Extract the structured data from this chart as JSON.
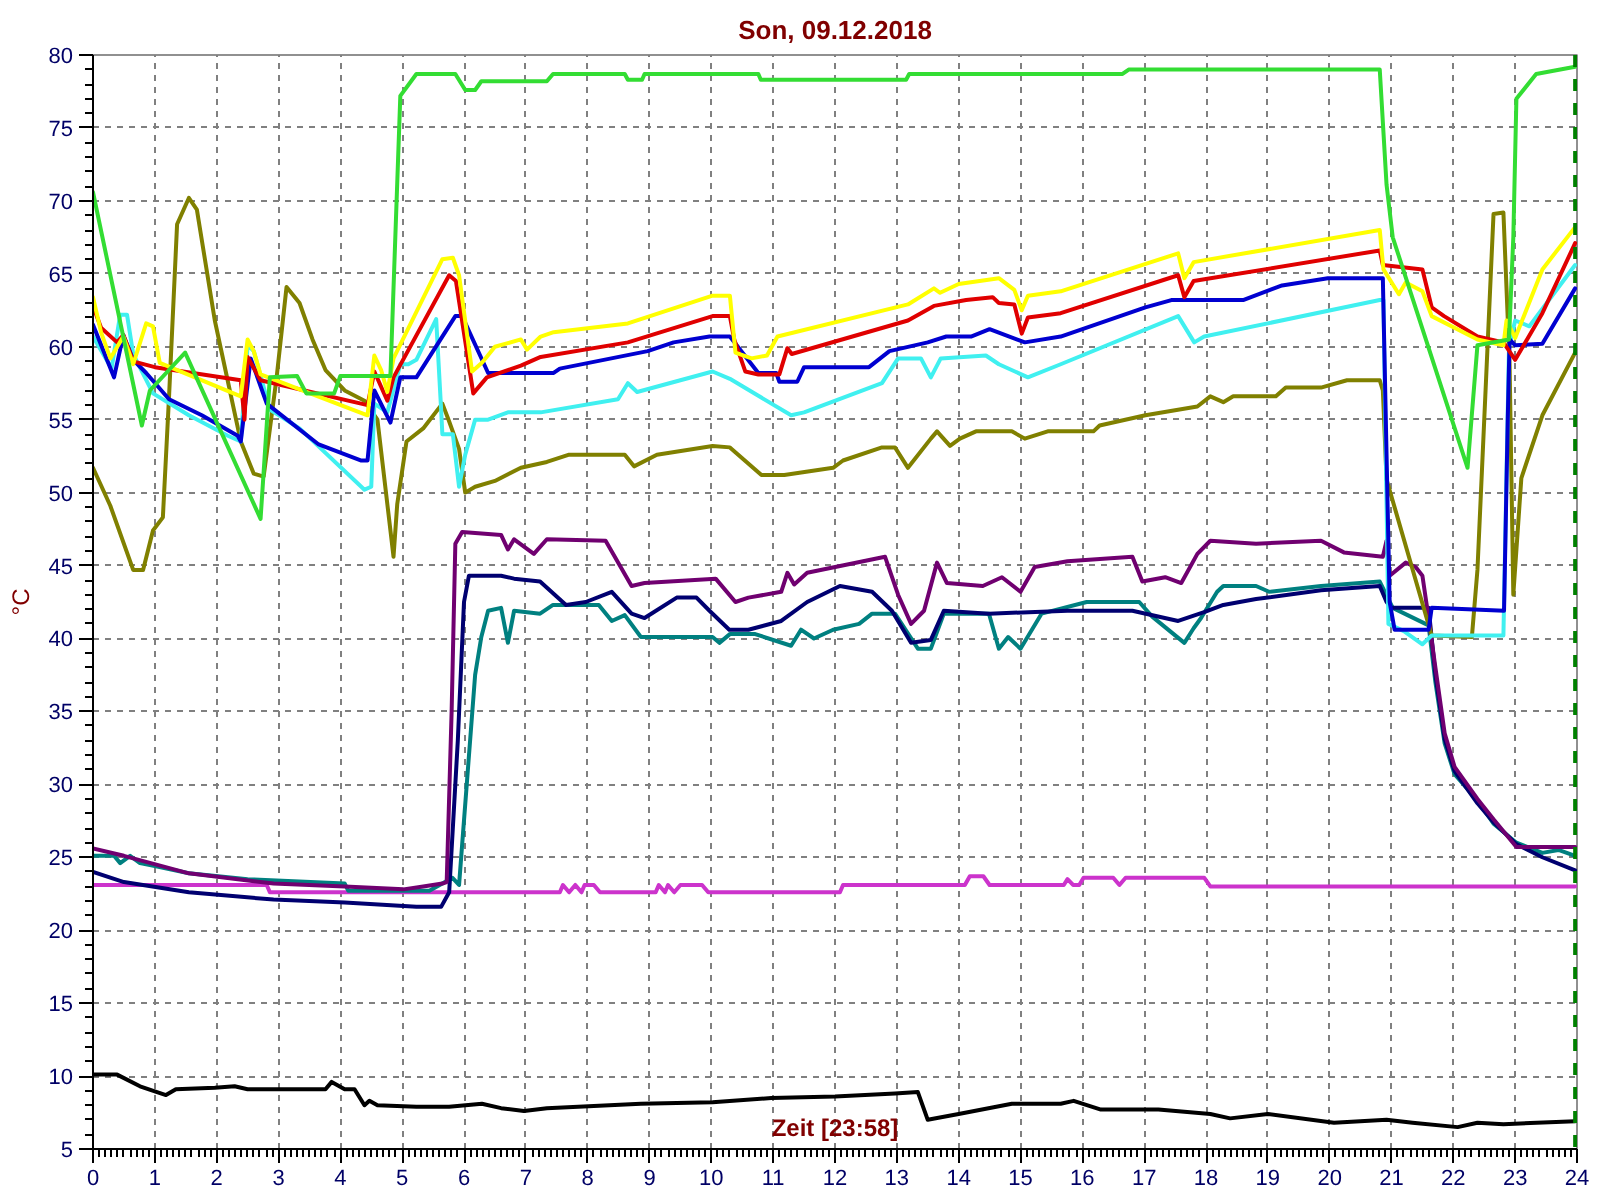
{
  "chart_data": {
    "type": "line",
    "title": "Son, 09.12.2018",
    "xlabel": "Zeit [23:58]",
    "ylabel": "°C",
    "xlim": [
      0,
      24
    ],
    "ylim": [
      5,
      80
    ],
    "xticks": [
      0,
      1,
      2,
      3,
      4,
      5,
      6,
      7,
      8,
      9,
      10,
      11,
      12,
      13,
      14,
      15,
      16,
      17,
      18,
      19,
      20,
      21,
      22,
      23,
      24
    ],
    "yticks": [
      5,
      10,
      15,
      20,
      25,
      30,
      35,
      40,
      45,
      50,
      55,
      60,
      65,
      70,
      75,
      80
    ],
    "grid": true,
    "ref_lines": [
      {
        "axis": "x",
        "value": 23.97,
        "color": "#008000",
        "line_style": "dashed"
      }
    ],
    "series": [
      {
        "color": "#000000",
        "x": [
          0,
          0.39,
          0.76,
          1.18,
          1.34,
          1.97,
          2.29,
          2.5,
          3.76,
          3.86,
          4.07,
          4.23,
          4.39,
          4.47,
          4.6,
          5.23,
          5.76,
          6.29,
          6.6,
          6.97,
          7.34,
          8.86,
          10.02,
          10.97,
          12.0,
          12.97,
          13.34,
          13.5,
          14.0,
          14.86,
          15.65,
          15.86,
          16.3,
          17.23,
          18.07,
          18.39,
          19.0,
          20.07,
          20.92,
          21.34,
          22.07,
          22.39,
          22.81,
          23.97
        ],
        "values": [
          10.1,
          10.1,
          9.3,
          8.7,
          9.1,
          9.2,
          9.3,
          9.1,
          9.1,
          9.6,
          9.1,
          9.1,
          8.0,
          8.3,
          8.0,
          7.9,
          7.9,
          8.1,
          7.8,
          7.6,
          7.8,
          8.1,
          8.2,
          8.5,
          8.6,
          8.8,
          8.9,
          7.0,
          7.4,
          8.1,
          8.1,
          8.3,
          7.7,
          7.7,
          7.4,
          7.1,
          7.4,
          6.8,
          7.0,
          6.8,
          6.5,
          6.8,
          6.7,
          6.9
        ]
      },
      {
        "color": "#cc33cc",
        "x": [
          0,
          2.81,
          2.86,
          7.55,
          7.6,
          7.7,
          7.8,
          7.9,
          7.95,
          8.1,
          8.2,
          9.1,
          9.15,
          9.25,
          9.3,
          9.4,
          9.5,
          9.85,
          9.95,
          12.08,
          12.13,
          14.1,
          14.18,
          14.4,
          14.5,
          15.7,
          15.76,
          15.85,
          15.95,
          16.02,
          16.5,
          16.6,
          16.7,
          17.97,
          18.07,
          23.97
        ],
        "values": [
          23.1,
          23.1,
          22.6,
          22.6,
          23.1,
          22.6,
          23.1,
          22.6,
          23.1,
          23.1,
          22.6,
          22.6,
          23.1,
          22.6,
          23.1,
          22.6,
          23.1,
          23.1,
          22.6,
          22.6,
          23.1,
          23.1,
          23.7,
          23.7,
          23.1,
          23.1,
          23.5,
          23.1,
          23.1,
          23.6,
          23.6,
          23.1,
          23.6,
          23.6,
          23.0,
          23.0
        ]
      },
      {
        "color": "#008080",
        "x": [
          0,
          0.34,
          0.44,
          0.6,
          0.76,
          1.0,
          1.55,
          2.5,
          4.07,
          4.13,
          5.44,
          5.65,
          5.81,
          5.92,
          6.18,
          6.28,
          6.39,
          6.6,
          6.71,
          6.81,
          7.23,
          7.44,
          8.18,
          8.39,
          8.6,
          8.86,
          10.02,
          10.13,
          10.3,
          10.71,
          11.29,
          11.45,
          11.66,
          11.97,
          12.39,
          12.6,
          12.97,
          13.34,
          13.55,
          13.76,
          14.49,
          14.65,
          14.8,
          15.0,
          15.34,
          16.07,
          16.92,
          17.13,
          17.65,
          17.8,
          17.92,
          18.18,
          18.28,
          18.81,
          19.02,
          19.86,
          20.81,
          21.02,
          21.6,
          21.71,
          21.86,
          22.02,
          22.39,
          22.65,
          23.02,
          23.44,
          23.7,
          23.97
        ],
        "values": [
          25.1,
          25.1,
          24.6,
          25.1,
          24.6,
          24.4,
          23.9,
          23.5,
          23.2,
          22.7,
          22.7,
          23.2,
          23.6,
          23.1,
          37.5,
          40.1,
          41.9,
          42.1,
          39.7,
          41.9,
          41.7,
          42.3,
          42.3,
          41.2,
          41.6,
          40.1,
          40.1,
          39.7,
          40.3,
          40.3,
          39.5,
          40.6,
          40.0,
          40.6,
          41.0,
          41.7,
          41.7,
          39.3,
          39.3,
          41.7,
          41.7,
          39.3,
          40.1,
          39.3,
          41.7,
          42.5,
          42.5,
          41.5,
          39.7,
          40.7,
          41.4,
          43.2,
          43.6,
          43.6,
          43.2,
          43.6,
          43.9,
          42.1,
          40.9,
          37.0,
          32.8,
          30.7,
          28.9,
          27.3,
          26.0,
          25.3,
          25.5,
          25.1
        ]
      },
      {
        "color": "#000070",
        "x": [
          0,
          0.5,
          1.55,
          2.92,
          4.07,
          5.23,
          5.63,
          5.76,
          5.9,
          6.0,
          6.08,
          6.6,
          6.81,
          7.23,
          7.65,
          7.97,
          8.39,
          8.71,
          8.92,
          9.44,
          9.76,
          9.97,
          10.29,
          10.6,
          11.13,
          11.55,
          12.08,
          12.6,
          12.92,
          13.23,
          13.55,
          13.76,
          14.49,
          15.76,
          16.81,
          17.55,
          17.97,
          18.28,
          18.81,
          19.86,
          20.81,
          20.92,
          21.0,
          21.6,
          21.71,
          21.86,
          22.02,
          22.39,
          22.65,
          23.02,
          23.44,
          23.97
        ],
        "values": [
          24.0,
          23.3,
          22.6,
          22.1,
          21.9,
          21.6,
          21.6,
          22.6,
          33.0,
          42.5,
          44.3,
          44.3,
          44.1,
          43.9,
          42.3,
          42.5,
          43.2,
          41.7,
          41.4,
          42.8,
          42.8,
          41.9,
          40.6,
          40.6,
          41.2,
          42.5,
          43.6,
          43.2,
          41.9,
          39.7,
          39.9,
          41.9,
          41.7,
          41.9,
          41.9,
          41.2,
          41.8,
          42.3,
          42.7,
          43.3,
          43.6,
          42.5,
          42.1,
          42.1,
          37.5,
          33.1,
          30.9,
          28.7,
          27.4,
          25.9,
          25.0,
          24.1
        ]
      },
      {
        "color": "#700070",
        "x": [
          0,
          0.5,
          1.55,
          2.92,
          4.07,
          5.02,
          5.34,
          5.65,
          5.72,
          5.8,
          5.86,
          5.97,
          6.6,
          6.71,
          6.81,
          7.13,
          7.34,
          8.29,
          8.71,
          8.92,
          10.07,
          10.39,
          10.6,
          11.13,
          11.23,
          11.34,
          11.55,
          12.81,
          13.02,
          13.23,
          13.44,
          13.65,
          13.81,
          14.39,
          14.7,
          15.0,
          15.23,
          15.76,
          16.81,
          16.97,
          17.34,
          17.6,
          17.86,
          18.07,
          18.81,
          19.86,
          20.23,
          20.86,
          20.92,
          20.97,
          21.23,
          21.39,
          21.5,
          21.6,
          21.71,
          21.86,
          22.02,
          22.39,
          22.65,
          23.02,
          23.97
        ],
        "values": [
          25.6,
          25.1,
          23.9,
          23.2,
          23.0,
          22.8,
          23.0,
          23.2,
          23.3,
          35.0,
          46.5,
          47.3,
          47.1,
          46.1,
          46.8,
          45.8,
          46.8,
          46.7,
          43.6,
          43.8,
          44.1,
          42.5,
          42.8,
          43.2,
          44.5,
          43.7,
          44.5,
          45.6,
          43.0,
          41.0,
          41.9,
          45.2,
          43.8,
          43.6,
          44.2,
          43.2,
          44.9,
          45.3,
          45.6,
          43.9,
          44.2,
          43.8,
          45.8,
          46.7,
          46.5,
          46.7,
          45.9,
          45.6,
          46.7,
          44.3,
          45.2,
          44.9,
          44.3,
          41.4,
          38.0,
          33.5,
          31.2,
          29.0,
          27.6,
          25.7,
          25.7
        ]
      },
      {
        "color": "#808000",
        "x": [
          0,
          0.28,
          0.65,
          0.81,
          0.97,
          1.13,
          1.23,
          1.36,
          1.55,
          1.68,
          1.97,
          2.39,
          2.6,
          2.76,
          2.97,
          3.13,
          3.34,
          3.55,
          3.76,
          4.07,
          4.39,
          4.6,
          4.86,
          4.92,
          5.07,
          5.34,
          5.65,
          5.75,
          5.92,
          6.02,
          6.18,
          6.5,
          6.92,
          7.34,
          7.7,
          8.6,
          8.75,
          9.12,
          10.02,
          10.3,
          10.81,
          11.18,
          11.97,
          12.13,
          12.76,
          12.97,
          13.18,
          13.55,
          13.65,
          13.86,
          14.02,
          14.28,
          14.86,
          15.07,
          15.44,
          16.18,
          16.28,
          17.02,
          17.86,
          18.07,
          18.28,
          18.44,
          19.13,
          19.29,
          19.86,
          20.28,
          20.81,
          20.86,
          20.92,
          21.65,
          22.3,
          22.39,
          22.65,
          22.81,
          22.91,
          22.97,
          23.1,
          23.44,
          23.97
        ],
        "values": [
          51.7,
          49.1,
          44.7,
          44.7,
          47.4,
          48.3,
          56.6,
          68.4,
          70.2,
          69.4,
          61.8,
          53.5,
          51.3,
          51.1,
          57.9,
          64.1,
          63.0,
          60.5,
          58.4,
          57.0,
          56.3,
          55.0,
          45.6,
          49.2,
          53.5,
          54.4,
          56.1,
          55.0,
          53.0,
          50.0,
          50.4,
          50.8,
          51.7,
          52.1,
          52.6,
          52.6,
          51.8,
          52.6,
          53.2,
          53.1,
          51.2,
          51.2,
          51.7,
          52.2,
          53.1,
          53.1,
          51.7,
          53.7,
          54.2,
          53.2,
          53.7,
          54.2,
          54.2,
          53.7,
          54.2,
          54.2,
          54.6,
          55.3,
          55.9,
          56.6,
          56.2,
          56.6,
          56.6,
          57.2,
          57.2,
          57.7,
          57.7,
          57.0,
          50.9,
          40.2,
          40.1,
          44.7,
          69.1,
          69.2,
          58.8,
          43.0,
          51.0,
          55.3,
          59.6
        ]
      },
      {
        "color": "#40f0f0",
        "x": [
          0,
          0.3,
          0.44,
          0.55,
          0.65,
          0.97,
          1.55,
          2.18,
          2.39,
          2.5,
          2.6,
          2.86,
          3.34,
          4.39,
          4.5,
          4.55,
          4.76,
          4.97,
          5.1,
          5.23,
          5.55,
          5.63,
          5.65,
          5.82,
          5.92,
          6.02,
          6.18,
          6.39,
          6.71,
          7.24,
          8.49,
          8.65,
          8.8,
          10.02,
          10.3,
          11.29,
          11.5,
          12.76,
          13.02,
          13.39,
          13.55,
          13.71,
          14.44,
          14.65,
          15.12,
          15.65,
          17.55,
          17.81,
          17.97,
          20.81,
          20.87,
          20.95,
          21.2,
          21.5,
          21.65,
          22.81,
          22.9,
          23.0,
          23.23,
          23.97
        ],
        "values": [
          60.7,
          58.5,
          62.2,
          62.2,
          59.5,
          56.8,
          55.3,
          53.9,
          53.5,
          60.1,
          59.7,
          55.7,
          54.4,
          50.2,
          50.4,
          56.1,
          55.5,
          58.8,
          58.8,
          59.1,
          61.9,
          55.7,
          54.0,
          54.0,
          50.4,
          52.6,
          55.0,
          55.0,
          55.5,
          55.5,
          56.4,
          57.5,
          56.9,
          58.3,
          57.8,
          55.3,
          55.5,
          57.5,
          59.2,
          59.2,
          57.9,
          59.2,
          59.4,
          58.8,
          57.9,
          58.8,
          62.1,
          60.3,
          60.7,
          63.2,
          63.2,
          41.0,
          40.5,
          39.6,
          40.2,
          40.2,
          60.0,
          61.8,
          61.4,
          65.6
        ]
      },
      {
        "color": "#0000d0",
        "x": [
          0,
          0.34,
          0.49,
          0.65,
          0.86,
          1.23,
          1.76,
          2.34,
          2.39,
          2.55,
          2.81,
          3.65,
          4.34,
          4.44,
          4.55,
          4.81,
          4.97,
          5.23,
          5.86,
          5.97,
          6.39,
          7.45,
          7.55,
          8.97,
          9.39,
          9.97,
          10.3,
          10.76,
          11.05,
          11.1,
          11.39,
          11.5,
          12.55,
          12.88,
          13.5,
          13.8,
          14.2,
          14.5,
          15.07,
          15.65,
          17.02,
          17.44,
          18.6,
          19.23,
          19.97,
          20.86,
          20.97,
          21.05,
          21.6,
          21.65,
          22.82,
          22.88,
          22.91,
          23.0,
          23.44,
          23.97
        ],
        "values": [
          61.5,
          57.9,
          60.8,
          59.1,
          58.2,
          56.4,
          55.3,
          53.9,
          53.5,
          59.2,
          56.1,
          53.3,
          52.2,
          52.2,
          57.0,
          54.8,
          57.9,
          57.9,
          62.1,
          62.1,
          58.2,
          58.2,
          58.5,
          59.7,
          60.3,
          60.7,
          60.7,
          58.2,
          58.2,
          57.6,
          57.6,
          58.6,
          58.6,
          59.7,
          60.3,
          60.7,
          60.7,
          61.2,
          60.3,
          60.7,
          62.7,
          63.2,
          63.2,
          64.2,
          64.7,
          64.7,
          42.5,
          40.6,
          40.6,
          42.1,
          41.9,
          55.0,
          60.5,
          60.1,
          60.2,
          64.0
        ]
      },
      {
        "color": "#e00000",
        "x": [
          0,
          0.13,
          0.39,
          0.49,
          0.65,
          1.0,
          2.39,
          2.45,
          2.5,
          2.71,
          4.44,
          4.55,
          4.76,
          4.86,
          5.76,
          5.87,
          6.15,
          6.37,
          6.92,
          7.24,
          8.65,
          10.02,
          10.3,
          10.37,
          10.55,
          10.76,
          11.1,
          11.23,
          11.3,
          13.18,
          13.6,
          14.12,
          14.55,
          14.65,
          14.9,
          15.02,
          15.12,
          15.65,
          17.55,
          17.65,
          17.8,
          20.81,
          20.86,
          21.5,
          21.65,
          21.85,
          22.39,
          22.81,
          23.0,
          23.44,
          23.97
        ],
        "values": [
          62.8,
          61.3,
          60.3,
          60.8,
          59.0,
          58.6,
          57.7,
          55.0,
          59.3,
          57.7,
          56.0,
          58.3,
          56.3,
          57.9,
          64.9,
          64.5,
          56.8,
          57.9,
          58.7,
          59.3,
          60.3,
          62.1,
          62.1,
          60.5,
          58.3,
          58.1,
          58.1,
          59.9,
          59.5,
          61.8,
          62.8,
          63.2,
          63.4,
          63.0,
          62.9,
          60.9,
          62.0,
          62.3,
          64.9,
          63.4,
          64.5,
          66.6,
          65.6,
          65.3,
          62.7,
          62.1,
          60.7,
          60.3,
          59.1,
          62.3,
          67.1
        ]
      },
      {
        "color": "#ffff00",
        "x": [
          0,
          0.13,
          0.28,
          0.49,
          0.65,
          0.86,
          0.97,
          1.08,
          2.39,
          2.5,
          2.6,
          2.71,
          4.44,
          4.55,
          4.66,
          4.76,
          4.86,
          5.65,
          5.82,
          5.92,
          6.13,
          6.29,
          6.5,
          6.92,
          7.02,
          7.24,
          7.45,
          8.65,
          10.02,
          10.3,
          10.39,
          10.65,
          10.9,
          11.07,
          13.18,
          13.6,
          13.7,
          14.0,
          14.65,
          14.9,
          15.02,
          15.12,
          15.65,
          17.55,
          17.65,
          17.8,
          20.81,
          20.87,
          21.12,
          21.23,
          21.5,
          21.65,
          22.39,
          22.81,
          22.86,
          23.0,
          23.44,
          23.97
        ],
        "values": [
          63.4,
          61.0,
          59.2,
          60.7,
          58.8,
          61.6,
          61.4,
          58.9,
          56.6,
          60.5,
          59.7,
          58.1,
          55.3,
          59.4,
          58.4,
          56.9,
          59.2,
          66.0,
          66.1,
          64.9,
          58.3,
          58.9,
          60.0,
          60.5,
          59.8,
          60.7,
          61.0,
          61.6,
          63.5,
          63.5,
          59.6,
          59.2,
          59.4,
          60.7,
          62.9,
          64.0,
          63.7,
          64.3,
          64.7,
          63.9,
          62.5,
          63.5,
          63.8,
          66.4,
          64.7,
          65.8,
          68.0,
          65.3,
          63.6,
          64.4,
          63.8,
          62.1,
          60.5,
          60.1,
          61.8,
          60.6,
          65.3,
          68.2
        ]
      },
      {
        "color": "#33dd33",
        "x": [
          0,
          0.79,
          0.92,
          1.49,
          2.71,
          2.86,
          3.3,
          3.45,
          3.9,
          4.0,
          4.81,
          4.97,
          5.23,
          5.86,
          6.02,
          6.18,
          6.28,
          7.34,
          7.44,
          8.6,
          8.65,
          8.88,
          8.92,
          10.76,
          10.8,
          13.15,
          13.2,
          15.65,
          16.65,
          16.75,
          20.81,
          20.92,
          21.02,
          22.23,
          22.39,
          22.9,
          22.97,
          23.02,
          23.34,
          23.6,
          23.97
        ],
        "values": [
          70.6,
          54.6,
          57.0,
          59.6,
          48.2,
          57.9,
          58.0,
          56.8,
          56.8,
          58.0,
          58.0,
          77.2,
          78.7,
          78.7,
          77.6,
          77.6,
          78.2,
          78.2,
          78.7,
          78.7,
          78.3,
          78.3,
          78.7,
          78.7,
          78.3,
          78.3,
          78.7,
          78.7,
          78.7,
          79.0,
          79.0,
          71.1,
          67.5,
          51.7,
          60.1,
          60.5,
          67.5,
          77.0,
          78.7,
          78.9,
          79.2
        ]
      }
    ]
  }
}
